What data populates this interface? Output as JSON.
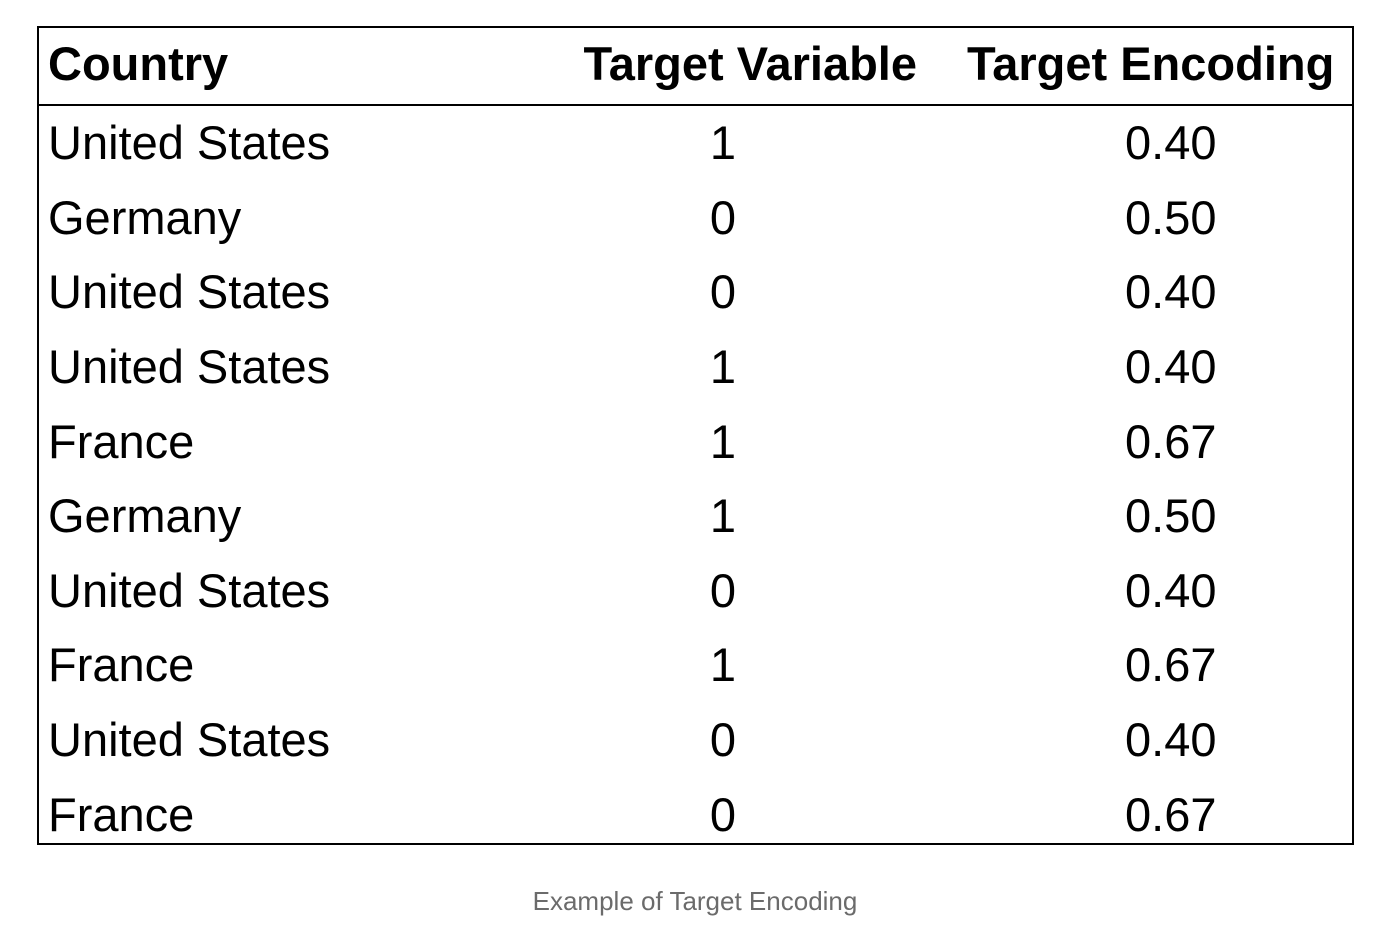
{
  "table": {
    "headers": [
      "Country",
      "Target Variable",
      "Target Encoding"
    ],
    "rows": [
      [
        "United States",
        "1",
        "0.40"
      ],
      [
        "Germany",
        "0",
        "0.50"
      ],
      [
        "United States",
        "0",
        "0.40"
      ],
      [
        "United States",
        "1",
        "0.40"
      ],
      [
        "France",
        "1",
        "0.67"
      ],
      [
        "Germany",
        "1",
        "0.50"
      ],
      [
        "United States",
        "0",
        "0.40"
      ],
      [
        "France",
        "1",
        "0.67"
      ],
      [
        "United States",
        "0",
        "0.40"
      ],
      [
        "France",
        "0",
        "0.67"
      ]
    ]
  },
  "caption": "Example of Target Encoding"
}
